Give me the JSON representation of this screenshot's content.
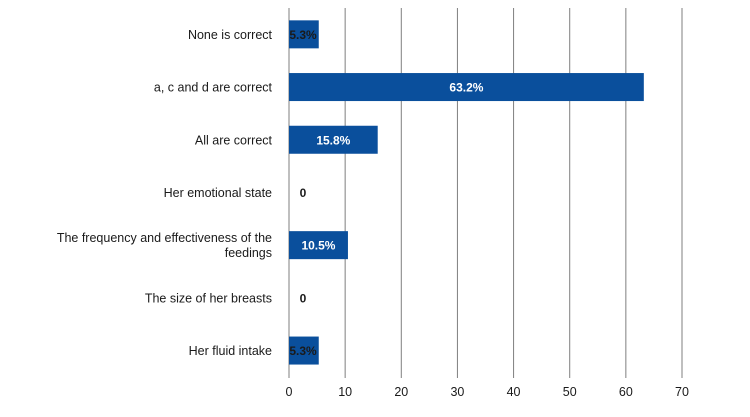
{
  "chart_data": {
    "type": "bar",
    "orientation": "horizontal",
    "categories": [
      "None is correct",
      "a, c and d are correct",
      "All are correct",
      "Her emotional state",
      "The frequency and effectiveness of the feedings",
      "The size of her breasts",
      "Her fluid intake"
    ],
    "values": [
      5.3,
      63.2,
      15.8,
      0,
      10.5,
      0,
      5.3
    ],
    "value_labels": [
      "5.3%",
      "63.2%",
      "15.8%",
      "0",
      "10.5%",
      "0",
      "5.3%"
    ],
    "x_ticks": [
      "0",
      "10",
      "20",
      "30",
      "40",
      "50",
      "60",
      "70"
    ],
    "xlim": [
      0,
      70
    ],
    "grid": "vertical",
    "bar_color": "#0a4f9c",
    "grid_color": "#7f7f7f",
    "title": "",
    "xlabel": "",
    "ylabel": ""
  }
}
